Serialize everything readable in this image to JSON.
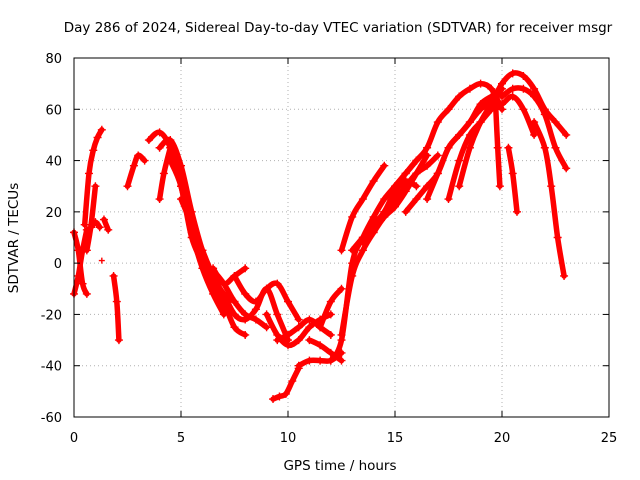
{
  "chart_data": {
    "type": "scatter",
    "title": "Day 286 of 2024, Sidereal Day-to-day VTEC variation (SDTVAR) for receiver msgr",
    "xlabel": "GPS time / hours",
    "ylabel": "SDTVAR / TECUs",
    "xlim": [
      0,
      25
    ],
    "ylim": [
      -60,
      80
    ],
    "x_ticks": [
      "0",
      "5",
      "10",
      "15",
      "20",
      "25"
    ],
    "y_ticks": [
      "-60",
      "-40",
      "-20",
      "0",
      "20",
      "40",
      "60",
      "80"
    ],
    "grid": true,
    "marker": "+",
    "color": "#ff0000",
    "series": [
      {
        "name": "arc-1",
        "x": [
          0.0,
          0.2,
          0.4,
          0.6
        ],
        "y": [
          12,
          5,
          -8,
          -12
        ]
      },
      {
        "name": "arc-2",
        "x": [
          0.0,
          0.2,
          0.4,
          0.6
        ],
        "y": [
          -12,
          -5,
          5,
          13
        ]
      },
      {
        "name": "arc-3",
        "x": [
          0.5,
          0.7,
          0.9,
          1.1,
          1.3
        ],
        "y": [
          15,
          35,
          44,
          49,
          52
        ]
      },
      {
        "name": "arc-4",
        "x": [
          0.6,
          0.8,
          1.0
        ],
        "y": [
          5,
          15,
          30
        ]
      },
      {
        "name": "arc-5",
        "x": [
          0.8,
          1.0,
          1.2
        ],
        "y": [
          14,
          16,
          14
        ]
      },
      {
        "name": "arc-6",
        "x": [
          1.4,
          1.6
        ],
        "y": [
          17,
          13
        ]
      },
      {
        "name": "arc-7",
        "x": [
          1.85,
          2.0,
          2.1
        ],
        "y": [
          -5,
          -15,
          -30
        ]
      },
      {
        "name": "arc-8",
        "x": [
          2.5,
          2.8,
          3.0,
          3.3
        ],
        "y": [
          30,
          38,
          42,
          40
        ]
      },
      {
        "name": "arc-9",
        "x": [
          3.5,
          4.0,
          4.5,
          5.0,
          5.5,
          6.0,
          6.5,
          7.0
        ],
        "y": [
          48,
          51,
          45,
          30,
          12,
          -2,
          -12,
          -20
        ]
      },
      {
        "name": "arc-10",
        "x": [
          4.0,
          4.5,
          5.0,
          5.5,
          6.0,
          6.5,
          7.0,
          7.5,
          8.0
        ],
        "y": [
          45,
          48,
          38,
          20,
          5,
          -5,
          -15,
          -25,
          -28
        ]
      },
      {
        "name": "arc-11",
        "x": [
          4.0,
          4.2,
          4.5
        ],
        "y": [
          25,
          35,
          45
        ]
      },
      {
        "name": "arc-12",
        "x": [
          4.5,
          5.0,
          5.5,
          6.0,
          6.5,
          7.0
        ],
        "y": [
          40,
          30,
          10,
          0,
          -10,
          -18
        ]
      },
      {
        "name": "arc-13",
        "x": [
          5.0,
          5.5,
          6.0,
          6.5,
          7.0,
          7.5
        ],
        "y": [
          25,
          15,
          5,
          -5,
          -12,
          -15
        ]
      },
      {
        "name": "arc-14",
        "x": [
          6.0,
          6.5,
          7.0,
          7.5,
          8.0,
          8.5,
          9.0
        ],
        "y": [
          0,
          -3,
          -8,
          -15,
          -20,
          -22,
          -25
        ]
      },
      {
        "name": "arc-15",
        "x": [
          6.5,
          7.0,
          7.5,
          8.0
        ],
        "y": [
          -2,
          -8,
          -5,
          -2
        ]
      },
      {
        "name": "arc-16",
        "x": [
          7.0,
          7.5,
          8.0,
          8.5,
          9.0,
          9.5,
          10.0
        ],
        "y": [
          -12,
          -20,
          -22,
          -18,
          -10,
          -20,
          -30
        ]
      },
      {
        "name": "arc-17",
        "x": [
          7.5,
          8.0,
          8.5,
          9.0,
          9.5,
          10.0,
          10.5
        ],
        "y": [
          -5,
          -12,
          -15,
          -10,
          -8,
          -15,
          -22
        ]
      },
      {
        "name": "arc-18",
        "x": [
          9.0,
          9.5,
          10.0,
          10.5,
          11.0,
          11.5,
          12.0
        ],
        "y": [
          -20,
          -28,
          -32,
          -30,
          -25,
          -22,
          -20
        ]
      },
      {
        "name": "arc-19",
        "x": [
          9.5,
          10.0,
          10.5,
          11.0,
          11.5,
          12.0
        ],
        "y": [
          -30,
          -28,
          -25,
          -22,
          -25,
          -28
        ]
      },
      {
        "name": "arc-20",
        "x": [
          9.3,
          9.6,
          9.9,
          10.2,
          10.5
        ],
        "y": [
          -53,
          -52,
          -51,
          -46,
          -41
        ]
      },
      {
        "name": "arc-21",
        "x": [
          10.5,
          11.0,
          11.5,
          12.0,
          12.5
        ],
        "y": [
          -40,
          -38,
          -38,
          -38,
          -35
        ]
      },
      {
        "name": "arc-22",
        "x": [
          11.0,
          11.5,
          12.0,
          12.5
        ],
        "y": [
          -30,
          -32,
          -35,
          -38
        ]
      },
      {
        "name": "arc-23",
        "x": [
          11.5,
          12.0,
          12.5
        ],
        "y": [
          -25,
          -15,
          -10
        ]
      },
      {
        "name": "arc-24",
        "x": [
          12.0,
          12.5,
          13.0,
          13.5,
          14.0,
          14.5,
          15.0,
          15.5,
          16.0
        ],
        "y": [
          -38,
          -30,
          0,
          10,
          18,
          25,
          30,
          35,
          40
        ]
      },
      {
        "name": "arc-25",
        "x": [
          12.5,
          13.0,
          13.5,
          14.0,
          14.5,
          15.0,
          15.5,
          16.0,
          16.5
        ],
        "y": [
          -28,
          -5,
          5,
          12,
          18,
          22,
          28,
          35,
          42
        ]
      },
      {
        "name": "arc-26",
        "x": [
          12.5,
          13.0,
          13.5,
          14.0,
          14.5
        ],
        "y": [
          5,
          18,
          25,
          32,
          38
        ]
      },
      {
        "name": "arc-27",
        "x": [
          13.0,
          13.5,
          14.0,
          14.5,
          15.0,
          15.5,
          16.0
        ],
        "y": [
          5,
          10,
          15,
          20,
          28,
          32,
          30
        ]
      },
      {
        "name": "arc-28",
        "x": [
          13.5,
          14.0,
          14.5,
          15.0,
          15.5,
          16.0,
          16.5,
          17.0
        ],
        "y": [
          8,
          12,
          20,
          25,
          30,
          35,
          38,
          42
        ]
      },
      {
        "name": "arc-29",
        "x": [
          15.0,
          15.5,
          16.0,
          16.5,
          17.0,
          17.5,
          18.0,
          18.5,
          19.0,
          19.5,
          20.0
        ],
        "y": [
          30,
          35,
          40,
          45,
          55,
          60,
          65,
          68,
          70,
          68,
          60
        ]
      },
      {
        "name": "arc-30",
        "x": [
          15.5,
          16.0,
          16.5,
          17.0,
          17.5,
          18.0,
          18.5,
          19.0,
          19.5
        ],
        "y": [
          20,
          25,
          30,
          35,
          45,
          50,
          55,
          60,
          63
        ]
      },
      {
        "name": "arc-31",
        "x": [
          16.5,
          17.0,
          17.5,
          18.0,
          18.5,
          19.0,
          19.5
        ],
        "y": [
          25,
          35,
          45,
          50,
          55,
          62,
          65
        ]
      },
      {
        "name": "arc-32",
        "x": [
          17.5,
          18.0,
          18.5,
          19.0,
          19.5
        ],
        "y": [
          25,
          40,
          50,
          55,
          60
        ]
      },
      {
        "name": "arc-33",
        "x": [
          18.0,
          18.5,
          19.0,
          19.5,
          20.0
        ],
        "y": [
          30,
          45,
          55,
          62,
          68
        ]
      },
      {
        "name": "arc-34",
        "x": [
          19.5,
          20.0,
          20.5,
          21.0,
          21.5,
          22.0,
          22.5,
          23.0
        ],
        "y": [
          62,
          70,
          74,
          73,
          68,
          60,
          55,
          50
        ]
      },
      {
        "name": "arc-35",
        "x": [
          20.0,
          20.5,
          21.0,
          21.5,
          22.0,
          22.5,
          23.0
        ],
        "y": [
          65,
          68,
          68,
          65,
          58,
          45,
          37
        ]
      },
      {
        "name": "arc-36",
        "x": [
          19.5,
          20.0,
          20.5,
          21.0,
          21.5
        ],
        "y": [
          60,
          62,
          65,
          60,
          50
        ]
      },
      {
        "name": "arc-37",
        "x": [
          21.5,
          22.0,
          22.3,
          22.6,
          22.9
        ],
        "y": [
          55,
          45,
          30,
          10,
          -5
        ]
      },
      {
        "name": "arc-38",
        "x": [
          20.3,
          20.5,
          20.7
        ],
        "y": [
          45,
          35,
          20
        ]
      },
      {
        "name": "arc-39",
        "x": [
          19.7,
          19.8,
          19.9
        ],
        "y": [
          62,
          45,
          30
        ]
      }
    ],
    "stray_points": [
      {
        "x": 1.3,
        "y": 1
      }
    ]
  }
}
